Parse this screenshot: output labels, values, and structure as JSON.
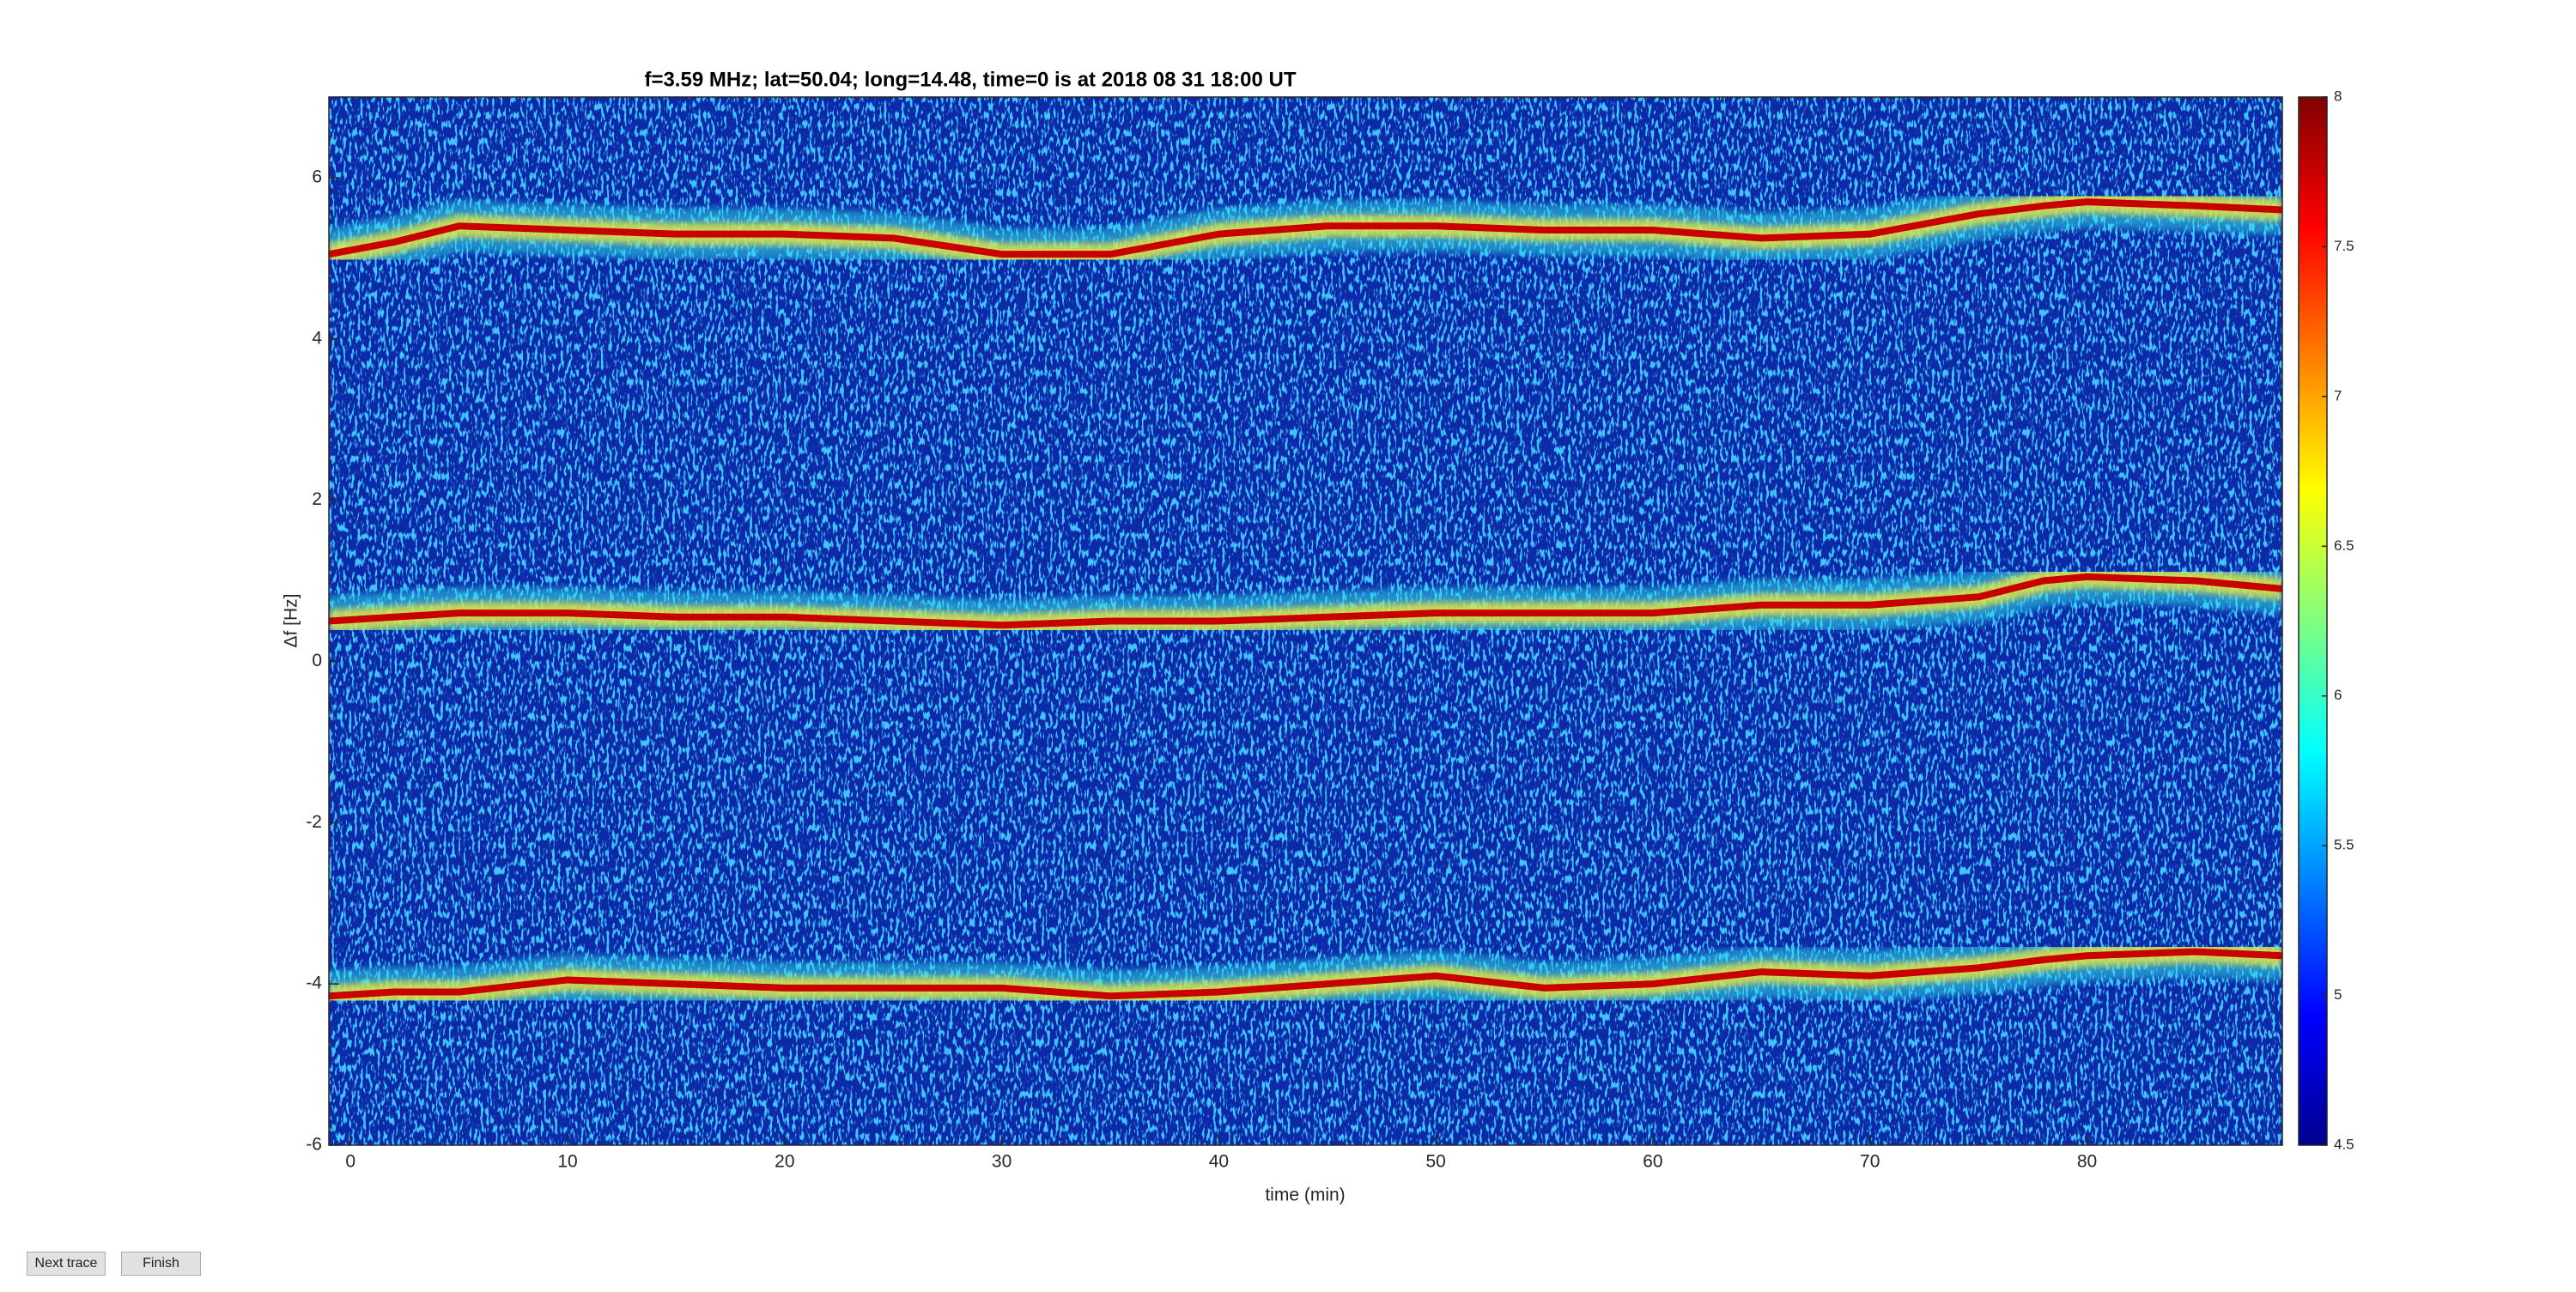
{
  "chart_data": {
    "type": "spectrogram",
    "title": "f=3.59 MHz;  lat=50.04; long=14.48, time=0 is at 2018 08 31 18:00 UT",
    "xlabel": "time (min)",
    "ylabel": "Δf [Hz]",
    "x": [
      -1,
      2,
      5,
      10,
      15,
      20,
      25,
      30,
      35,
      40,
      45,
      50,
      55,
      60,
      65,
      70,
      75,
      78,
      80,
      85,
      89
    ],
    "series": [
      {
        "color": "#c80000",
        "values": [
          5.05,
          5.2,
          5.4,
          5.35,
          5.3,
          5.3,
          5.25,
          5.05,
          5.05,
          5.3,
          5.4,
          5.4,
          5.35,
          5.35,
          5.25,
          5.3,
          5.55,
          5.65,
          5.7,
          5.65,
          5.6
        ]
      },
      {
        "color": "#c80000",
        "values": [
          0.5,
          0.55,
          0.6,
          0.6,
          0.55,
          0.55,
          0.5,
          0.45,
          0.5,
          0.5,
          0.55,
          0.6,
          0.6,
          0.6,
          0.7,
          0.7,
          0.8,
          1.0,
          1.05,
          1.0,
          0.9
        ]
      },
      {
        "color": "#c80000",
        "values": [
          -4.15,
          -4.1,
          -4.1,
          -3.95,
          -4.0,
          -4.05,
          -4.05,
          -4.05,
          -4.15,
          -4.1,
          -4.0,
          -3.9,
          -4.05,
          -4.0,
          -3.85,
          -3.9,
          -3.8,
          -3.7,
          -3.65,
          -3.6,
          -3.65
        ]
      }
    ],
    "xlim": [
      -1,
      89
    ],
    "xticks": [
      0,
      10,
      20,
      30,
      40,
      50,
      60,
      70,
      80
    ],
    "ylim": [
      -6,
      7
    ],
    "yticks": [
      -6,
      -4,
      -2,
      0,
      2,
      4,
      6
    ],
    "colormap": "jet",
    "background_color": "#0c2aa8",
    "clim": [
      4.5,
      8
    ],
    "cticks": [
      4.5,
      5,
      5.5,
      6,
      6.5,
      7,
      7.5,
      8
    ]
  },
  "buttons": [
    "Next trace",
    "Finish"
  ]
}
